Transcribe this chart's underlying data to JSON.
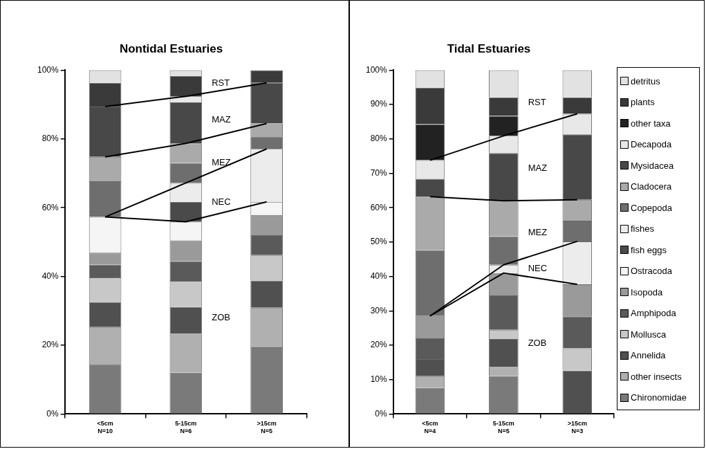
{
  "chart_data": [
    {
      "type": "bar",
      "title": "Nontidal Estuaries",
      "stacked": true,
      "legend": false,
      "categories": [
        "<5cm\nN=10",
        "5-15cm\nN=6",
        ">15cm\nN=5"
      ],
      "ylim": [
        0,
        100
      ],
      "yticks": [
        {
          "value": 0,
          "label": "0%"
        },
        {
          "value": 20,
          "label": "20%"
        },
        {
          "value": 40,
          "label": "40%"
        },
        {
          "value": 60,
          "label": "60%"
        },
        {
          "value": 80,
          "label": "80%"
        },
        {
          "value": 100,
          "label": "100%"
        }
      ],
      "series": [
        {
          "color": "#7a7a7a",
          "values": [
            14.5,
            12.0,
            19.4
          ]
        },
        {
          "color": "#b0b0b0",
          "values": [
            10.8,
            11.3,
            11.5
          ]
        },
        {
          "color": "#505050",
          "values": [
            7.3,
            7.8,
            7.9
          ]
        },
        {
          "color": "#c8c8c8",
          "values": [
            7.1,
            7.6,
            7.4
          ]
        },
        {
          "color": "#5a5a5a",
          "values": [
            3.7,
            5.7,
            5.8
          ]
        },
        {
          "color": "#9a9a9a",
          "values": [
            3.5,
            6.1,
            5.9
          ]
        },
        {
          "color": "#f5f5f5",
          "values": [
            10.4,
            5.4,
            3.8
          ]
        },
        {
          "color": "#4a4a4a",
          "values": [
            0,
            5.8,
            0
          ]
        },
        {
          "color": "#ececec",
          "values": [
            0,
            5.5,
            15.4
          ]
        },
        {
          "color": "#6e6e6e",
          "values": [
            10.4,
            5.8,
            3.6
          ]
        },
        {
          "color": "#aaaaaa",
          "values": [
            7.1,
            5.7,
            3.8
          ]
        },
        {
          "color": "#484848",
          "values": [
            14.6,
            11.9,
            11.8
          ]
        },
        {
          "color": "#e8e8e8",
          "values": [
            0,
            1.8,
            0
          ]
        },
        {
          "color": "#222222",
          "values": [
            0,
            0,
            0
          ]
        },
        {
          "color": "#3a3a3a",
          "values": [
            6.9,
            5.9,
            3.7
          ]
        },
        {
          "color": "#e2e2e2",
          "values": [
            3.7,
            1.7,
            0
          ]
        },
        {
          "type": "line",
          "color": "#000000",
          "values": [
            57.3,
            55.9,
            61.7
          ]
        },
        {
          "type": "line",
          "color": "#000000",
          "values": [
            57.3,
            67.2,
            77.1
          ]
        },
        {
          "type": "line",
          "color": "#000000",
          "values": [
            74.8,
            78.7,
            84.5
          ]
        },
        {
          "type": "line",
          "color": "#000000",
          "values": [
            89.4,
            92.4,
            96.3
          ]
        }
      ],
      "annotations": [
        "RST",
        "MAZ",
        "MEZ",
        "NEC",
        "ZOB"
      ]
    },
    {
      "type": "bar",
      "title": "Tidal Estuaries",
      "stacked": true,
      "legend": "right",
      "categories": [
        "<5cm\nN=4",
        "5-15cm\nN=5",
        ">15cm\nN=3"
      ],
      "ylim": [
        0,
        100
      ],
      "yticks": [
        {
          "value": 0,
          "label": "0%"
        },
        {
          "value": 10,
          "label": "10%"
        },
        {
          "value": 20,
          "label": "20%"
        },
        {
          "value": 30,
          "label": "30%"
        },
        {
          "value": 40,
          "label": "40%"
        },
        {
          "value": 50,
          "label": "50%"
        },
        {
          "value": 60,
          "label": "60%"
        },
        {
          "value": 70,
          "label": "70%"
        },
        {
          "value": 80,
          "label": "80%"
        },
        {
          "value": 90,
          "label": "90%"
        },
        {
          "value": 100,
          "label": "100%"
        }
      ],
      "series": [
        {
          "name": "Chironomidae",
          "color": "#7a7a7a",
          "values": [
            7.6,
            11.0,
            0
          ]
        },
        {
          "name": "other insects",
          "color": "#b0b0b0",
          "values": [
            3.4,
            2.7,
            0
          ]
        },
        {
          "name": "Annelida",
          "color": "#505050",
          "values": [
            5.0,
            8.1,
            12.6
          ]
        },
        {
          "name": "Mollusca",
          "color": "#c8c8c8",
          "values": [
            0,
            2.7,
            6.5
          ]
        },
        {
          "name": "Amphipoda",
          "color": "#5a5a5a",
          "values": [
            6.0,
            10.0,
            9.3
          ]
        },
        {
          "name": "Isopoda",
          "color": "#9a9a9a",
          "values": [
            6.5,
            6.5,
            9.3
          ]
        },
        {
          "name": "Ostracoda",
          "color": "#f5f5f5",
          "values": [
            0,
            0,
            0
          ]
        },
        {
          "name": "fish eggs",
          "color": "#4a4a4a",
          "values": [
            0,
            0,
            0
          ]
        },
        {
          "name": "fishes",
          "color": "#ececec",
          "values": [
            0,
            2.4,
            12.5
          ]
        },
        {
          "name": "Copepoda",
          "color": "#6e6e6e",
          "values": [
            19.1,
            8.3,
            6.0
          ]
        },
        {
          "name": "Cladocera",
          "color": "#aaaaaa",
          "values": [
            15.6,
            10.3,
            6.1
          ]
        },
        {
          "name": "Mysidacea",
          "color": "#484848",
          "values": [
            5.2,
            13.9,
            19.0
          ]
        },
        {
          "name": "Decapoda",
          "color": "#e8e8e8",
          "values": [
            5.4,
            5.0,
            6.0
          ]
        },
        {
          "name": "other taxa",
          "color": "#222222",
          "values": [
            10.5,
            5.8,
            0
          ]
        },
        {
          "name": "plants",
          "color": "#3a3a3a",
          "values": [
            10.6,
            5.4,
            4.8
          ]
        },
        {
          "name": "detritus",
          "color": "#e2e2e2",
          "values": [
            5.1,
            7.9,
            7.9
          ]
        },
        {
          "type": "line",
          "color": "#000000",
          "values": [
            28.5,
            41.0,
            37.7
          ]
        },
        {
          "type": "line",
          "color": "#000000",
          "values": [
            28.5,
            43.4,
            50.2
          ]
        },
        {
          "type": "line",
          "color": "#000000",
          "values": [
            63.2,
            62.0,
            62.3
          ]
        },
        {
          "type": "line",
          "color": "#000000",
          "values": [
            73.8,
            80.9,
            87.3
          ]
        }
      ],
      "annotations": [
        "RST",
        "MAZ",
        "MEZ",
        "NEC",
        "ZOB"
      ]
    }
  ]
}
